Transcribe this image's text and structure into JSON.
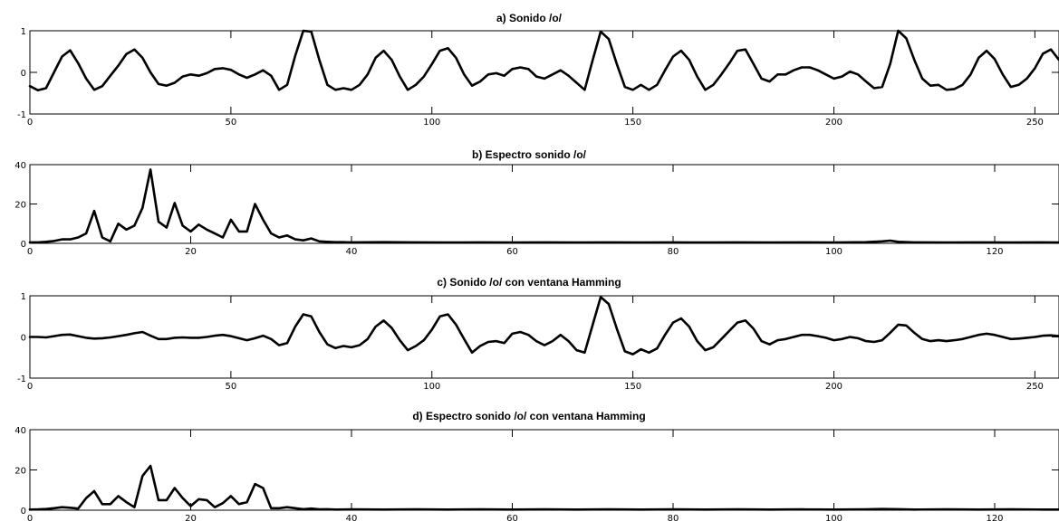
{
  "chart_data": [
    {
      "type": "line",
      "title": "a) Sonido /o/",
      "xlim": [
        0,
        256
      ],
      "ylim": [
        -1,
        1
      ],
      "xticks": [
        0,
        50,
        100,
        150,
        200,
        250
      ],
      "yticks": [
        1,
        0,
        -1
      ],
      "series": [
        {
          "x": [
            0,
            2,
            4,
            6,
            8,
            10,
            12,
            14,
            16,
            18,
            20,
            22,
            24,
            26,
            28,
            30,
            32,
            34,
            36,
            38,
            40,
            42,
            44,
            46,
            48,
            50,
            52,
            54,
            56,
            58,
            60,
            62,
            64,
            66,
            68,
            70,
            72,
            74,
            76,
            78,
            80,
            82,
            84,
            86,
            88,
            90,
            92,
            94,
            96,
            98,
            100,
            102,
            104,
            106,
            108,
            110,
            112,
            114,
            116,
            118,
            120,
            122,
            124,
            126,
            128,
            130,
            132,
            134,
            136,
            138,
            140,
            142,
            144,
            146,
            148,
            150,
            152,
            154,
            156,
            158,
            160,
            162,
            164,
            166,
            168,
            170,
            172,
            174,
            176,
            178,
            180,
            182,
            184,
            186,
            188,
            190,
            192,
            194,
            196,
            198,
            200,
            202,
            204,
            206,
            208,
            210,
            212,
            214,
            216,
            218,
            220,
            222,
            224,
            226,
            228,
            230,
            232,
            234,
            236,
            238,
            240,
            242,
            244,
            246,
            248,
            250,
            252,
            254,
            256
          ],
          "y": [
            -0.33,
            -0.43,
            -0.38,
            0.0,
            0.38,
            0.53,
            0.22,
            -0.15,
            -0.42,
            -0.33,
            -0.08,
            0.16,
            0.44,
            0.55,
            0.35,
            0.0,
            -0.28,
            -0.32,
            -0.25,
            -0.1,
            -0.05,
            -0.08,
            -0.02,
            0.08,
            0.1,
            0.06,
            -0.05,
            -0.13,
            -0.05,
            0.05,
            -0.08,
            -0.42,
            -0.3,
            0.4,
            1.0,
            0.98,
            0.3,
            -0.3,
            -0.42,
            -0.38,
            -0.42,
            -0.3,
            -0.05,
            0.35,
            0.52,
            0.3,
            -0.1,
            -0.42,
            -0.3,
            -0.1,
            0.2,
            0.52,
            0.58,
            0.35,
            -0.05,
            -0.32,
            -0.22,
            -0.05,
            -0.02,
            -0.08,
            0.08,
            0.12,
            0.08,
            -0.1,
            -0.15,
            -0.05,
            0.05,
            -0.08,
            -0.25,
            -0.42,
            0.3,
            0.98,
            0.8,
            0.2,
            -0.35,
            -0.42,
            -0.3,
            -0.42,
            -0.3,
            0.05,
            0.38,
            0.52,
            0.3,
            -0.1,
            -0.42,
            -0.3,
            -0.05,
            0.22,
            0.52,
            0.55,
            0.2,
            -0.15,
            -0.22,
            -0.05,
            -0.05,
            0.05,
            0.12,
            0.12,
            0.05,
            -0.05,
            -0.15,
            -0.1,
            0.02,
            -0.05,
            -0.22,
            -0.38,
            -0.35,
            0.2,
            1.0,
            0.82,
            0.3,
            -0.15,
            -0.32,
            -0.3,
            -0.42,
            -0.4,
            -0.3,
            -0.05,
            0.35,
            0.52,
            0.32,
            -0.05,
            -0.35,
            -0.3,
            -0.15,
            0.1,
            0.45,
            0.55,
            0.3
          ]
        }
      ]
    },
    {
      "type": "line",
      "title": "b) Espectro sonido /o/",
      "xlim": [
        0,
        128
      ],
      "ylim": [
        0,
        40
      ],
      "xticks": [
        0,
        20,
        40,
        60,
        80,
        100,
        120
      ],
      "yticks": [
        40,
        20,
        0
      ],
      "series": [
        {
          "x": [
            0,
            1,
            2,
            3,
            4,
            5,
            6,
            7,
            8,
            9,
            10,
            11,
            12,
            13,
            14,
            15,
            16,
            17,
            18,
            19,
            20,
            21,
            22,
            23,
            24,
            25,
            26,
            27,
            28,
            29,
            30,
            31,
            32,
            33,
            34,
            35,
            36,
            37,
            38,
            39,
            40,
            44,
            48,
            52,
            56,
            60,
            64,
            68,
            72,
            76,
            80,
            84,
            88,
            92,
            96,
            100,
            104,
            106,
            107,
            108,
            110,
            114,
            118,
            122,
            126,
            128
          ],
          "y": [
            0.5,
            0.5,
            0.8,
            1.2,
            2.0,
            2.0,
            3.0,
            5.0,
            16.5,
            3.0,
            1.0,
            10.0,
            7.0,
            9.0,
            18.0,
            37.5,
            11.0,
            8.0,
            20.5,
            9.0,
            6.0,
            9.5,
            7.0,
            5.0,
            3.0,
            12.0,
            6.0,
            6.0,
            20.0,
            12.0,
            5.0,
            3.0,
            4.0,
            2.0,
            1.5,
            2.5,
            1.0,
            0.8,
            0.6,
            0.6,
            0.5,
            0.6,
            0.5,
            0.4,
            0.5,
            0.4,
            0.5,
            0.4,
            0.5,
            0.4,
            0.5,
            0.4,
            0.5,
            0.4,
            0.5,
            0.4,
            0.6,
            1.0,
            1.4,
            0.8,
            0.5,
            0.4,
            0.5,
            0.4,
            0.5,
            0.4
          ]
        }
      ]
    },
    {
      "type": "line",
      "title": "c) Sonido /o/ con ventana Hamming",
      "xlim": [
        0,
        256
      ],
      "ylim": [
        -1,
        1
      ],
      "xticks": [
        0,
        50,
        100,
        150,
        200,
        250
      ],
      "yticks": [
        1,
        0,
        -1
      ],
      "series": [
        {
          "x": [
            0,
            2,
            4,
            6,
            8,
            10,
            12,
            14,
            16,
            18,
            20,
            22,
            24,
            26,
            28,
            30,
            32,
            34,
            36,
            38,
            40,
            42,
            44,
            46,
            48,
            50,
            52,
            54,
            56,
            58,
            60,
            62,
            64,
            66,
            68,
            70,
            72,
            74,
            76,
            78,
            80,
            82,
            84,
            86,
            88,
            90,
            92,
            94,
            96,
            98,
            100,
            102,
            104,
            106,
            108,
            110,
            112,
            114,
            116,
            118,
            120,
            122,
            124,
            126,
            128,
            130,
            132,
            134,
            136,
            138,
            140,
            142,
            144,
            146,
            148,
            150,
            152,
            154,
            156,
            158,
            160,
            162,
            164,
            166,
            168,
            170,
            172,
            174,
            176,
            178,
            180,
            182,
            184,
            186,
            188,
            190,
            192,
            194,
            196,
            198,
            200,
            202,
            204,
            206,
            208,
            210,
            212,
            214,
            216,
            218,
            220,
            222,
            224,
            226,
            228,
            230,
            232,
            234,
            236,
            238,
            240,
            242,
            244,
            246,
            248,
            250,
            252,
            254,
            256
          ],
          "y": [
            0.0,
            0.0,
            -0.01,
            0.02,
            0.05,
            0.06,
            0.02,
            -0.02,
            -0.04,
            -0.03,
            -0.01,
            0.02,
            0.05,
            0.09,
            0.12,
            0.03,
            -0.05,
            -0.05,
            -0.02,
            -0.01,
            -0.02,
            -0.02,
            0.0,
            0.03,
            0.05,
            0.02,
            -0.03,
            -0.08,
            -0.03,
            0.03,
            -0.05,
            -0.2,
            -0.15,
            0.25,
            0.55,
            0.5,
            0.12,
            -0.18,
            -0.27,
            -0.22,
            -0.25,
            -0.2,
            -0.05,
            0.25,
            0.4,
            0.22,
            -0.08,
            -0.32,
            -0.22,
            -0.08,
            0.18,
            0.5,
            0.55,
            0.3,
            -0.05,
            -0.38,
            -0.22,
            -0.12,
            -0.1,
            -0.15,
            0.08,
            0.12,
            0.05,
            -0.1,
            -0.2,
            -0.1,
            0.05,
            -0.1,
            -0.32,
            -0.38,
            0.3,
            0.97,
            0.8,
            0.2,
            -0.35,
            -0.42,
            -0.3,
            -0.38,
            -0.28,
            0.05,
            0.35,
            0.45,
            0.25,
            -0.1,
            -0.32,
            -0.25,
            -0.05,
            0.15,
            0.35,
            0.4,
            0.2,
            -0.1,
            -0.18,
            -0.08,
            -0.05,
            0.0,
            0.05,
            0.05,
            0.02,
            -0.02,
            -0.08,
            -0.05,
            0.0,
            -0.03,
            -0.1,
            -0.12,
            -0.08,
            0.1,
            0.3,
            0.28,
            0.1,
            -0.05,
            -0.1,
            -0.08,
            -0.1,
            -0.08,
            -0.05,
            0.0,
            0.05,
            0.08,
            0.05,
            0.0,
            -0.05,
            -0.04,
            -0.02,
            0.0,
            0.03,
            0.04,
            0.02
          ]
        }
      ]
    },
    {
      "type": "line",
      "title": "d) Espectro sonido /o/ con ventana Hamming",
      "xlim": [
        0,
        128
      ],
      "ylim": [
        0,
        40
      ],
      "xticks": [
        0,
        20,
        40,
        60,
        80,
        100,
        120
      ],
      "yticks": [
        40,
        20,
        0
      ],
      "series": [
        {
          "x": [
            0,
            1,
            2,
            3,
            4,
            5,
            6,
            7,
            8,
            9,
            10,
            11,
            12,
            13,
            14,
            15,
            16,
            17,
            18,
            19,
            20,
            21,
            22,
            23,
            24,
            25,
            26,
            27,
            28,
            29,
            30,
            31,
            32,
            33,
            34,
            35,
            36,
            37,
            38,
            40,
            44,
            48,
            52,
            56,
            60,
            64,
            68,
            72,
            76,
            80,
            84,
            88,
            92,
            96,
            100,
            104,
            106,
            108,
            110,
            114,
            118,
            122,
            126,
            128
          ],
          "y": [
            0.3,
            0.4,
            0.6,
            1.0,
            1.5,
            1.2,
            0.8,
            6.0,
            9.5,
            3.0,
            3.0,
            7.0,
            4.0,
            1.5,
            17.0,
            22.0,
            5.0,
            5.0,
            11.0,
            6.0,
            2.0,
            5.5,
            5.0,
            1.5,
            3.5,
            7.0,
            3.0,
            4.0,
            13.0,
            11.0,
            1.0,
            1.0,
            1.5,
            1.0,
            0.5,
            0.8,
            0.4,
            0.5,
            0.3,
            0.4,
            0.3,
            0.4,
            0.3,
            0.4,
            0.3,
            0.4,
            0.3,
            0.4,
            0.3,
            0.4,
            0.3,
            0.4,
            0.3,
            0.4,
            0.3,
            0.4,
            0.6,
            0.5,
            0.3,
            0.4,
            0.3,
            0.4,
            0.3,
            0.3
          ]
        }
      ]
    }
  ]
}
